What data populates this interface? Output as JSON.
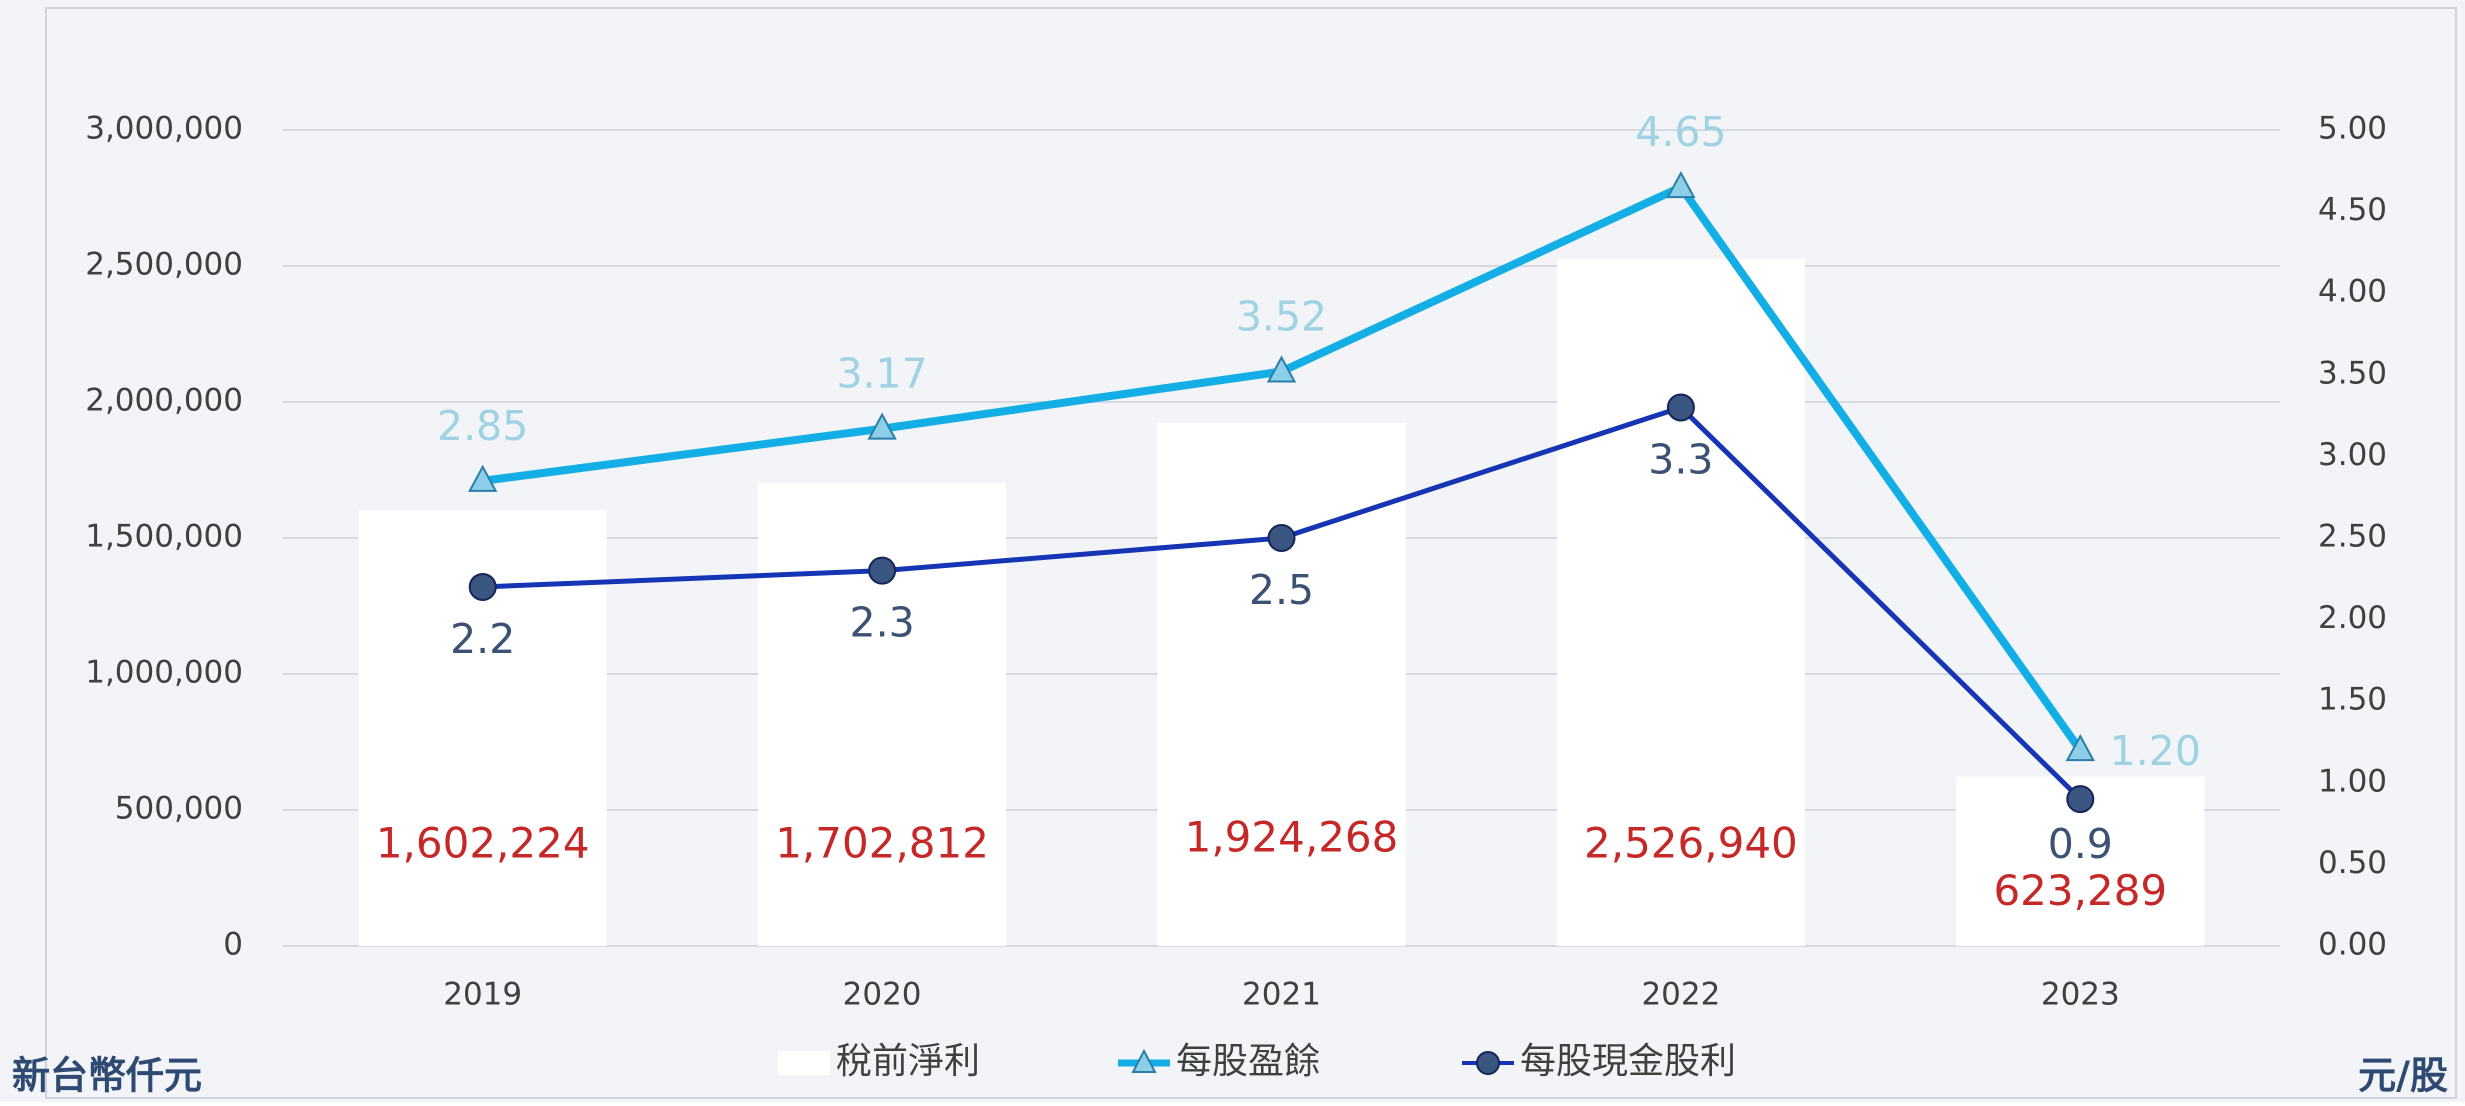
{
  "chart_data": {
    "type": "combo",
    "categories": [
      "2019",
      "2020",
      "2021",
      "2022",
      "2023"
    ],
    "series": [
      {
        "name": "稅前淨利",
        "type": "bar",
        "color": "#ffffff",
        "label_color": "#c62828",
        "values": [
          1602224,
          1702812,
          1924268,
          2526940,
          623289
        ],
        "value_labels": [
          "1,602,224",
          "1,702,812",
          "1,924,268",
          "2,526,940",
          "623,289"
        ]
      },
      {
        "name": "每股盈餘",
        "type": "line",
        "axis": "y2",
        "color": "#14aee6",
        "marker": "triangle",
        "marker_color": "#8ccfe6",
        "label_color": "#9fd3e3",
        "values": [
          2.85,
          3.17,
          3.52,
          4.65,
          1.2
        ],
        "value_labels": [
          "2.85",
          "3.17",
          "3.52",
          "4.65",
          "1.20"
        ]
      },
      {
        "name": "每股現金股利",
        "type": "line",
        "axis": "y2",
        "color": "#1535b5",
        "marker": "circle",
        "marker_color": "#3a557f",
        "label_color": "#3b5275",
        "values": [
          2.2,
          2.3,
          2.5,
          3.3,
          0.9
        ]
      }
    ],
    "ylabel": "新台幣仟元",
    "y2label": "元/股",
    "ylim": [
      0,
      3000000
    ],
    "yticks": [
      0,
      {
        "value": 500000,
        "label": "500,000"
      },
      {
        "value": 1000000,
        "label": "1,000,000"
      },
      {
        "value": 1500000,
        "label": "1,500,000"
      },
      {
        "value": 2000000,
        "label": "2,000,000"
      },
      {
        "value": 2500000,
        "label": "2,500,000"
      },
      {
        "value": 3000000,
        "label": "3,000,000"
      }
    ],
    "y2lim": [
      0,
      5
    ],
    "y2ticks": [
      {
        "value": 0,
        "label": "0.00"
      },
      {
        "value": 0.5,
        "label": "0.50"
      },
      {
        "value": 1,
        "label": "1.00"
      },
      {
        "value": 1.5,
        "label": "1.50"
      },
      {
        "value": 2,
        "label": "2.00"
      },
      {
        "value": 2.5,
        "label": "2.50"
      },
      {
        "value": 3,
        "label": "3.00"
      },
      {
        "value": 3.5,
        "label": "3.50"
      },
      {
        "value": 4,
        "label": "4.00"
      },
      {
        "value": 4.5,
        "label": "4.50"
      },
      {
        "value": 5,
        "label": "5.00"
      }
    ],
    "grid": true,
    "legend": "bottom"
  }
}
